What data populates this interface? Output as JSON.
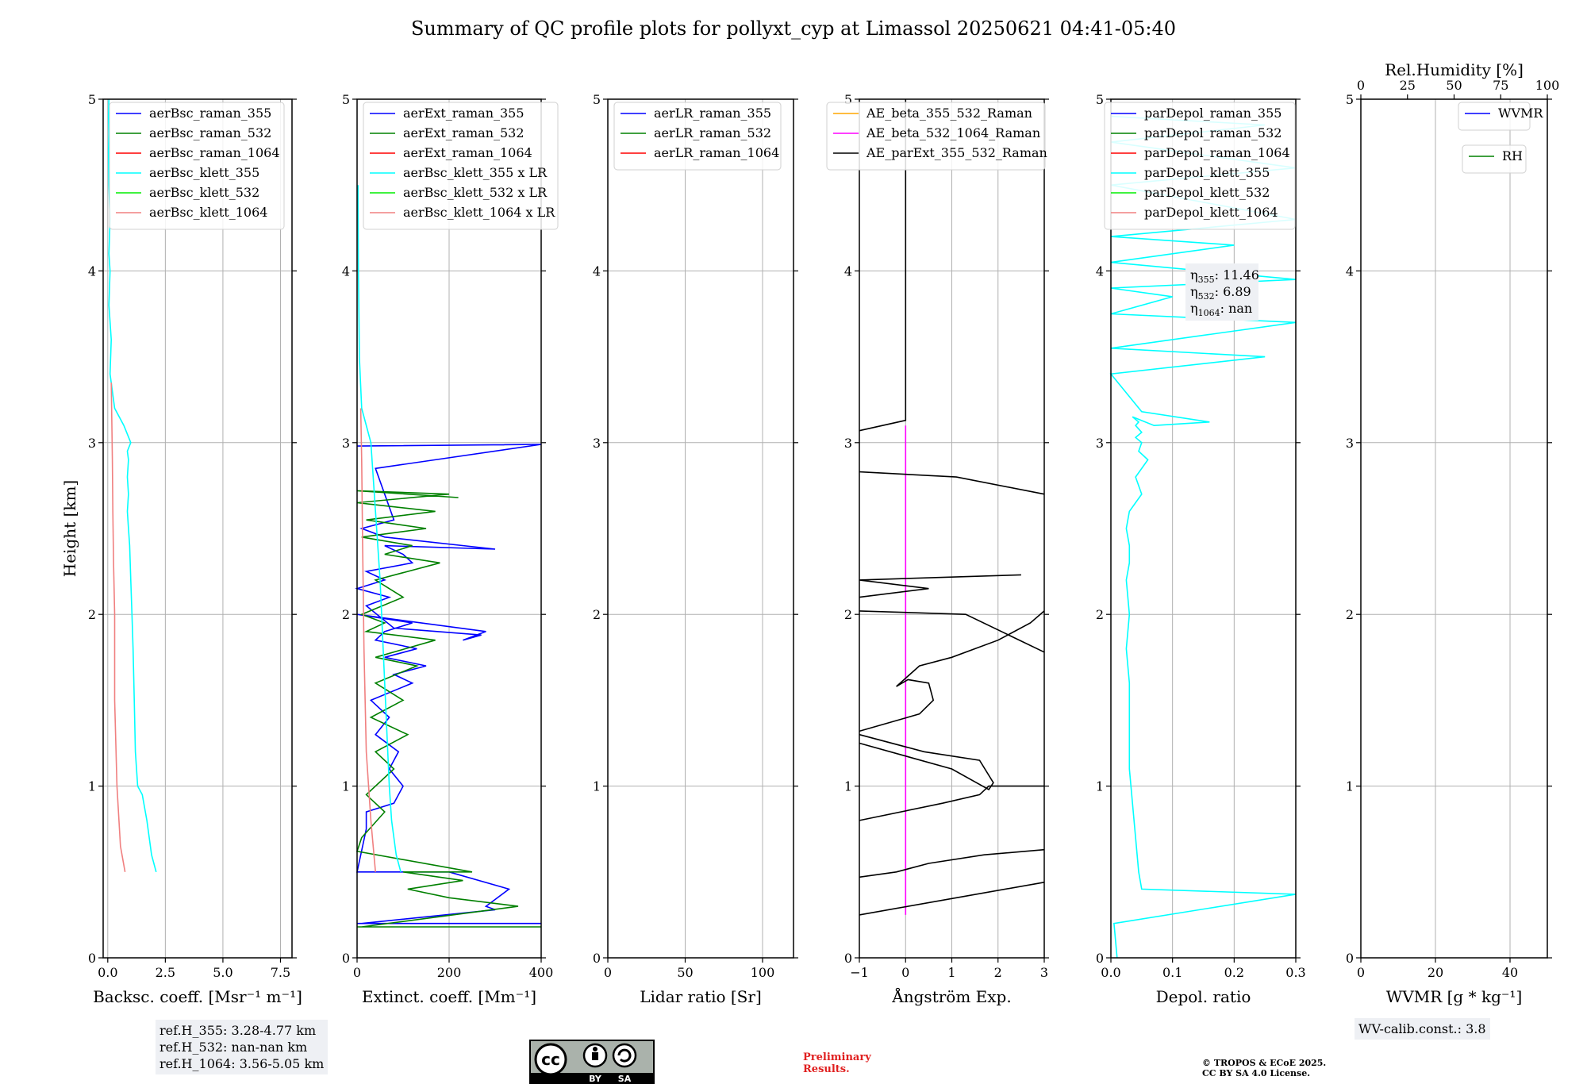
{
  "title": "Summary of QC profile plots for pollyxt_cyp at Limassol 20250621 04:41-05:40",
  "footer": {
    "ref_lines": [
      "ref.H_355: 3.28-4.77 km",
      "ref.H_532: nan-nan km",
      "ref.H_1064: 3.56-5.05 km"
    ],
    "wv_calib": "WV-calib.const.: 3.8",
    "preliminary": [
      "Preliminary",
      "Results."
    ],
    "copyright": [
      "© TROPOS & ECoE 2025.",
      "CC BY SA 4.0 License."
    ],
    "license_badge": {
      "cc": "cc",
      "by": "BY",
      "sa": "SA"
    }
  },
  "colors": {
    "blue": "#0000ff",
    "green": "#008000",
    "red": "#ff0000",
    "cyan": "#00ffff",
    "lime": "#00ee00",
    "salmon": "#f08080",
    "orange": "#ffa500",
    "magenta": "#ff00ff",
    "black": "#000000"
  },
  "chart_data": [
    {
      "type": "line",
      "ylabel": "Height [km]",
      "xlabel": "Backsc. coeff. [Msr⁻¹ m⁻¹]",
      "xlim": [
        -0.2,
        8.0
      ],
      "ylim": [
        0,
        5
      ],
      "xticks": [
        0,
        2.5,
        5,
        7.5
      ],
      "xticklabels": [
        "0.0",
        "2.5",
        "5.0",
        "7.5"
      ],
      "yticks": [
        0,
        1,
        2,
        3,
        4,
        5
      ],
      "legend": [
        "aerBsc_raman_355",
        "aerBsc_raman_532",
        "aerBsc_raman_1064",
        "aerBsc_klett_355",
        "aerBsc_klett_532",
        "aerBsc_klett_1064"
      ],
      "legend_colors": [
        "blue",
        "green",
        "red",
        "cyan",
        "lime",
        "salmon"
      ],
      "series": [
        {
          "name": "aerBsc_klett_355",
          "color": "cyan",
          "x": [
            2.1,
            1.9,
            1.7,
            1.5,
            1.3,
            1.2,
            1.15,
            1.1,
            1.05,
            1.0,
            0.95,
            0.9,
            0.85,
            0.9,
            0.85,
            0.9,
            0.85,
            1.0,
            0.7,
            0.3,
            0.1,
            0.15,
            0.05,
            0.1,
            0.05,
            0.1,
            0.05,
            0.03,
            0.05,
            0.03,
            0.05
          ],
          "y": [
            0.5,
            0.6,
            0.8,
            0.95,
            1.0,
            1.2,
            1.5,
            1.8,
            2.0,
            2.2,
            2.4,
            2.5,
            2.6,
            2.7,
            2.8,
            2.9,
            2.95,
            3.0,
            3.1,
            3.2,
            3.4,
            3.6,
            3.8,
            4.0,
            4.1,
            4.3,
            4.5,
            4.7,
            4.8,
            4.9,
            5.0
          ]
        },
        {
          "name": "aerBsc_klett_1064",
          "color": "salmon",
          "x": [
            0.75,
            0.55,
            0.4,
            0.3,
            0.3,
            0.25,
            0.22,
            0.2,
            0.18,
            0.15
          ],
          "y": [
            0.5,
            0.65,
            1.0,
            1.5,
            2.0,
            2.3,
            2.6,
            2.9,
            3.1,
            3.35
          ]
        }
      ]
    },
    {
      "type": "line",
      "xlabel": "Extinct. coeff. [Mm⁻¹]",
      "xlim": [
        0,
        400
      ],
      "ylim": [
        0,
        5
      ],
      "xticks": [
        0,
        200,
        400
      ],
      "xticklabels": [
        "0",
        "200",
        "400"
      ],
      "yticks": [
        0,
        1,
        2,
        3,
        4,
        5
      ],
      "legend": [
        "aerExt_raman_355",
        "aerExt_raman_532",
        "aerExt_raman_1064",
        "aerBsc_klett_355 x LR",
        "aerBsc_klett_532 x LR",
        "aerBsc_klett_1064 x LR"
      ],
      "legend_colors": [
        "blue",
        "green",
        "red",
        "cyan",
        "lime",
        "salmon"
      ],
      "series": [
        {
          "name": "aerExt_raman_355",
          "color": "blue",
          "x": [
            0,
            400,
            10,
            300,
            280,
            330,
            200,
            0,
            20,
            20,
            80,
            100,
            70,
            90,
            40,
            70,
            30,
            120,
            80,
            150,
            60,
            130,
            40,
            60,
            120,
            0,
            280,
            230,
            270,
            80,
            20,
            70,
            0,
            60,
            20,
            120,
            100,
            60,
            300,
            60,
            10,
            80,
            40,
            400,
            0
          ],
          "y": [
            0.2,
            0.2,
            0.2,
            0.28,
            0.3,
            0.4,
            0.5,
            0.5,
            0.75,
            0.85,
            0.9,
            1.0,
            1.1,
            1.2,
            1.3,
            1.4,
            1.5,
            1.6,
            1.65,
            1.7,
            1.75,
            1.8,
            1.85,
            1.9,
            1.95,
            2.0,
            1.9,
            1.85,
            1.88,
            1.92,
            2.05,
            2.1,
            2.15,
            2.2,
            2.25,
            2.3,
            2.35,
            2.4,
            2.38,
            2.45,
            2.5,
            2.55,
            2.85,
            2.99,
            2.98
          ]
        },
        {
          "name": "aerExt_raman_532",
          "color": "green",
          "x": [
            0,
            400,
            10,
            350,
            200,
            110,
            230,
            100,
            250,
            0,
            10,
            60,
            20,
            80,
            40,
            110,
            30,
            100,
            40,
            130,
            40,
            170,
            20,
            60,
            10,
            100,
            40,
            180,
            60,
            120,
            10,
            150,
            20,
            170,
            0,
            200,
            0,
            220
          ],
          "y": [
            0.18,
            0.18,
            0.18,
            0.3,
            0.35,
            0.4,
            0.45,
            0.5,
            0.5,
            0.62,
            0.7,
            0.85,
            0.95,
            1.1,
            1.2,
            1.3,
            1.4,
            1.5,
            1.6,
            1.7,
            1.75,
            1.85,
            1.9,
            1.95,
            2.0,
            2.1,
            2.2,
            2.3,
            2.35,
            2.4,
            2.45,
            2.5,
            2.55,
            2.6,
            2.65,
            2.7,
            2.72,
            2.68
          ]
        },
        {
          "name": "aerBsc_klett_355 x LR",
          "color": "cyan",
          "x": [
            95,
            85,
            75,
            70,
            65,
            60,
            55,
            50,
            40,
            30,
            10,
            5,
            3,
            2
          ],
          "y": [
            0.5,
            0.6,
            0.8,
            1.0,
            1.3,
            1.6,
            1.9,
            2.2,
            2.6,
            3.0,
            3.2,
            3.5,
            4.0,
            4.5
          ]
        },
        {
          "name": "aerBsc_klett_1064 x LR",
          "color": "salmon",
          "x": [
            40,
            30,
            20,
            15,
            12,
            10,
            8
          ],
          "y": [
            0.5,
            0.8,
            1.2,
            1.8,
            2.4,
            2.9,
            3.2
          ]
        }
      ]
    },
    {
      "type": "line",
      "xlabel": "Lidar ratio [Sr]",
      "xlim": [
        0,
        120
      ],
      "ylim": [
        0,
        5
      ],
      "xticks": [
        0,
        50,
        100
      ],
      "xticklabels": [
        "0",
        "50",
        "100"
      ],
      "yticks": [
        0,
        1,
        2,
        3,
        4,
        5
      ],
      "legend": [
        "aerLR_raman_355",
        "aerLR_raman_532",
        "aerLR_raman_1064"
      ],
      "legend_colors": [
        "blue",
        "green",
        "red"
      ],
      "series": []
    },
    {
      "type": "line",
      "xlabel": "Ångström Exp.",
      "xlim": [
        -1,
        3
      ],
      "ylim": [
        0,
        5
      ],
      "xticks": [
        -1,
        0,
        1,
        2,
        3
      ],
      "xticklabels": [
        "−1",
        "0",
        "1",
        "2",
        "3"
      ],
      "yticks": [
        0,
        1,
        2,
        3,
        4,
        5
      ],
      "legend": [
        "AE_beta_355_532_Raman",
        "AE_beta_532_1064_Raman",
        "AE_parExt_355_532_Raman"
      ],
      "legend_colors": [
        "orange",
        "magenta",
        "black"
      ],
      "series": [
        {
          "name": "AE_beta_532_1064_Raman",
          "color": "magenta",
          "x": [
            0,
            0
          ],
          "y": [
            0.25,
            3.1
          ]
        },
        {
          "name": "AE_parExt_355_532_Raman",
          "color": "black",
          "x": [
            0,
            0,
            -1
          ],
          "y": [
            5.0,
            3.13,
            3.07
          ]
        },
        {
          "name": "AE_parExt_355_532_Raman",
          "color": "black",
          "x": [
            -1,
            1.1,
            3,
            null,
            -1,
            -0.2,
            0.5,
            1.7,
            3,
            null,
            -1,
            0.8,
            1.6,
            1.8,
            3,
            null,
            -1,
            1.0,
            1.8,
            1.9,
            1.6,
            0.4,
            -1,
            null,
            -1,
            0.3,
            0.6,
            0.5,
            0.05,
            -0.2,
            0.3,
            1.0,
            2.0,
            2.7,
            3,
            null,
            -1,
            1.3,
            3,
            null,
            -1,
            0.5,
            -1,
            2.5,
            null,
            -1,
            1.1,
            3
          ],
          "y": [
            0.25,
            0.35,
            0.44,
            null,
            0.47,
            0.5,
            0.55,
            0.6,
            0.63,
            null,
            0.8,
            0.9,
            0.95,
            1.0,
            1.0,
            null,
            1.25,
            1.1,
            0.98,
            1.02,
            1.15,
            1.2,
            1.3,
            null,
            1.32,
            1.42,
            1.5,
            1.6,
            1.62,
            1.58,
            1.7,
            1.75,
            1.85,
            1.95,
            2.02,
            null,
            2.02,
            2.0,
            1.78,
            null,
            2.1,
            2.15,
            2.2,
            2.23,
            null,
            2.83,
            2.8,
            2.7
          ]
        }
      ]
    },
    {
      "type": "line",
      "xlabel": "Depol. ratio",
      "xlim": [
        0,
        0.3
      ],
      "ylim": [
        0,
        5
      ],
      "xticks": [
        0,
        0.1,
        0.2,
        0.3
      ],
      "xticklabels": [
        "0.0",
        "0.1",
        "0.2",
        "0.3"
      ],
      "yticks": [
        0,
        1,
        2,
        3,
        4,
        5
      ],
      "legend": [
        "parDepol_raman_355",
        "parDepol_raman_532",
        "parDepol_raman_1064",
        "parDepol_klett_355",
        "parDepol_klett_532",
        "parDepol_klett_1064"
      ],
      "legend_colors": [
        "blue",
        "green",
        "red",
        "cyan",
        "lime",
        "salmon"
      ],
      "series": [
        {
          "name": "parDepol_klett_355",
          "color": "cyan",
          "x": [
            0.01,
            0.005,
            0.3,
            0.05,
            0.045,
            0.04,
            0.035,
            0.03,
            0.03,
            0.03,
            0.025,
            0.03,
            0.025,
            0.03,
            0.03,
            0.025,
            0.03,
            0.05,
            0.04,
            0.06,
            0.045,
            0.05,
            0.04,
            0.05,
            0.04,
            0.045,
            0.035,
            0.07,
            0.16,
            0.05,
            0.0,
            0.25,
            0.0,
            0.3,
            0.0,
            0.1,
            0.0,
            0.3,
            0.0,
            0.2,
            0.0,
            0.3,
            0.0,
            0.3,
            0.0,
            0.25,
            0.0
          ],
          "y": [
            0.0,
            0.2,
            0.37,
            0.4,
            0.5,
            0.7,
            0.9,
            1.1,
            1.3,
            1.6,
            1.8,
            2.0,
            2.2,
            2.3,
            2.4,
            2.5,
            2.6,
            2.7,
            2.8,
            2.9,
            2.95,
            3.0,
            3.03,
            3.06,
            3.1,
            3.12,
            3.15,
            3.1,
            3.12,
            3.18,
            3.4,
            3.5,
            3.55,
            3.7,
            3.75,
            3.85,
            3.9,
            3.95,
            4.05,
            4.15,
            4.2,
            4.3,
            4.5,
            4.6,
            4.75,
            4.85,
            4.9
          ]
        }
      ],
      "annotation": [
        "η",
        "355",
        ": 11.46",
        "η",
        "532",
        ": 6.89",
        "η",
        "1064",
        ": nan"
      ]
    },
    {
      "type": "line",
      "xlabel": "WVMR [g * kg⁻¹]",
      "xlim": [
        0,
        50
      ],
      "ylim": [
        0,
        5
      ],
      "xticks": [
        0,
        20,
        40
      ],
      "xticklabels": [
        "0",
        "20",
        "40"
      ],
      "yticks": [
        0,
        1,
        2,
        3,
        4,
        5
      ],
      "top_axis": {
        "label": "Rel.Humidity [%]",
        "ticks": [
          0,
          25,
          50,
          75,
          100
        ],
        "ticklabels": [
          "0",
          "25",
          "50",
          "75",
          "100"
        ],
        "lim": [
          0,
          100
        ]
      },
      "legend": [
        "WVMR"
      ],
      "legend_colors": [
        "blue"
      ],
      "legend2": [
        "RH"
      ],
      "legend2_colors": [
        "green"
      ],
      "series": []
    }
  ]
}
